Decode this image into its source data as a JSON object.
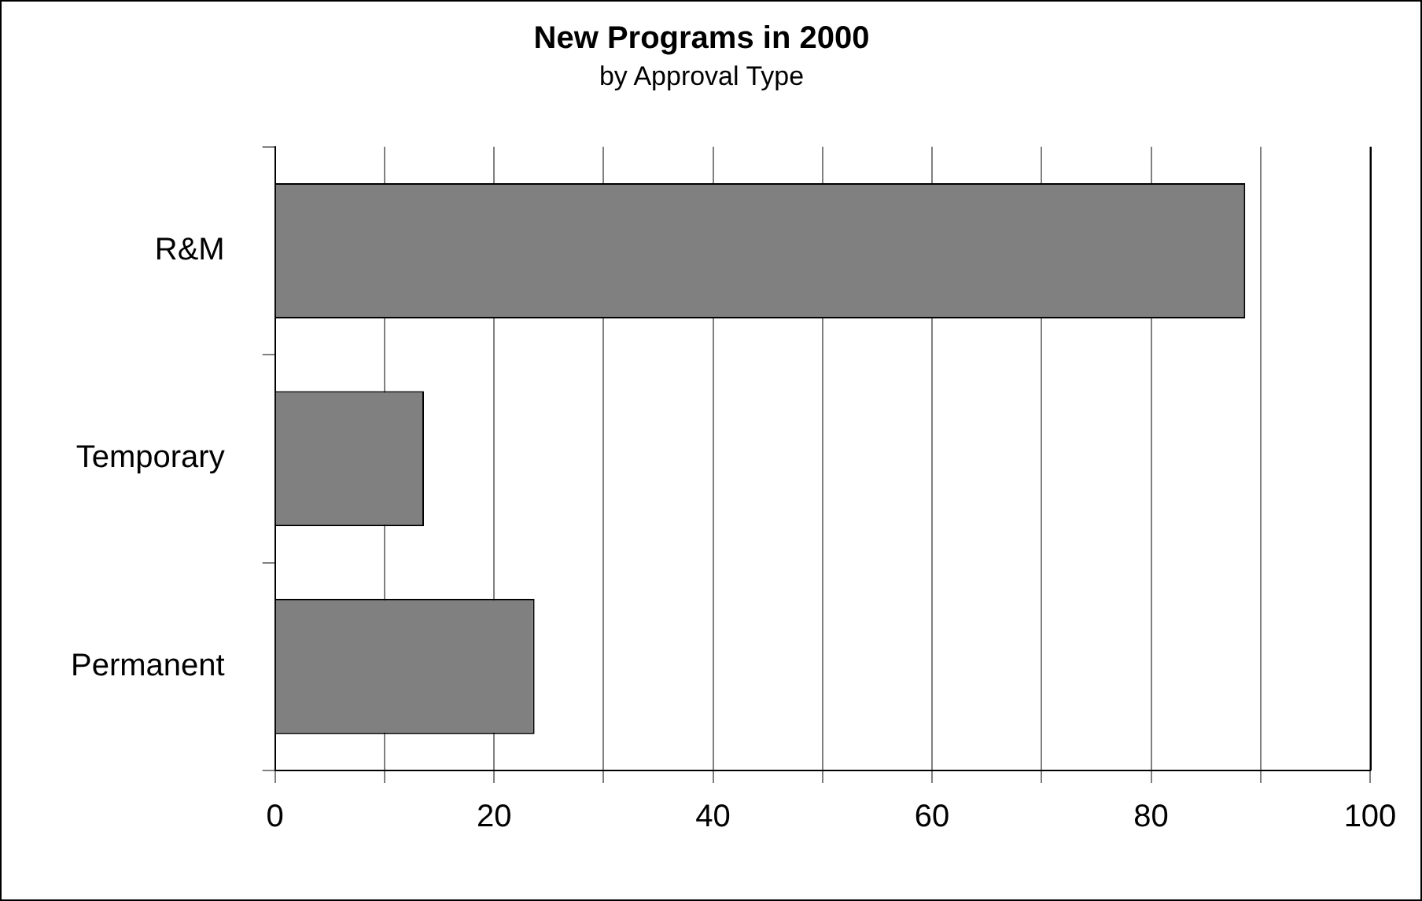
{
  "chart_data": {
    "type": "bar",
    "orientation": "horizontal",
    "title": "New Programs in 2000",
    "subtitle": "by Approval Type",
    "categories": [
      "R&M",
      "Temporary",
      "Permanent"
    ],
    "values": [
      88.6,
      13.6,
      23.7
    ],
    "color": "#808080",
    "xlim": [
      0,
      100
    ],
    "xticks": [
      0,
      {
        "value": 10,
        "label": null
      },
      20,
      {
        "value": 30,
        "label": null
      },
      40,
      {
        "value": 50,
        "label": null
      },
      60,
      {
        "value": 70,
        "label": null
      },
      80,
      {
        "value": 90,
        "label": null
      },
      100
    ],
    "grid": "x"
  }
}
